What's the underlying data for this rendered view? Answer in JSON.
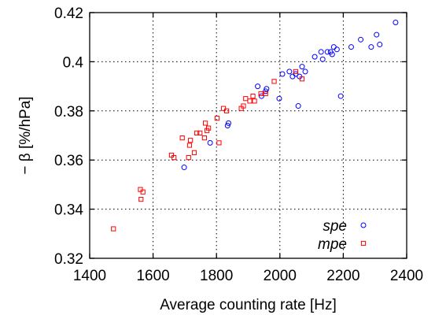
{
  "chart_data": {
    "type": "scatter",
    "xlabel": "Average counting rate [Hz]",
    "ylabel": "− β [%/hPa]",
    "xlim": [
      1400,
      2400
    ],
    "ylim": [
      0.32,
      0.42
    ],
    "xticks": [
      "1400",
      "1600",
      "1800",
      "2000",
      "2200",
      "2400"
    ],
    "yticks": [
      "0.32",
      "0.34",
      "0.36",
      "0.38",
      "0.4",
      "0.42"
    ],
    "grid": true,
    "legend_position": "bottom-right",
    "series": [
      {
        "name": "spe",
        "marker": "circle",
        "color": "#0000ff",
        "points": [
          [
            1698,
            0.357
          ],
          [
            1780,
            0.367
          ],
          [
            1835,
            0.374
          ],
          [
            1838,
            0.375
          ],
          [
            1930,
            0.39
          ],
          [
            1942,
            0.386
          ],
          [
            1955,
            0.388
          ],
          [
            1958,
            0.389
          ],
          [
            1998,
            0.385
          ],
          [
            2008,
            0.395
          ],
          [
            2030,
            0.396
          ],
          [
            2040,
            0.394
          ],
          [
            2050,
            0.395
          ],
          [
            2058,
            0.382
          ],
          [
            2062,
            0.394
          ],
          [
            2070,
            0.398
          ],
          [
            2080,
            0.396
          ],
          [
            2110,
            0.402
          ],
          [
            2130,
            0.404
          ],
          [
            2135,
            0.401
          ],
          [
            2150,
            0.404
          ],
          [
            2160,
            0.404
          ],
          [
            2165,
            0.403
          ],
          [
            2170,
            0.406
          ],
          [
            2180,
            0.405
          ],
          [
            2192,
            0.386
          ],
          [
            2225,
            0.406
          ],
          [
            2255,
            0.409
          ],
          [
            2288,
            0.406
          ],
          [
            2305,
            0.411
          ],
          [
            2315,
            0.407
          ],
          [
            2365,
            0.416
          ]
        ]
      },
      {
        "name": "mpe",
        "marker": "square",
        "color": "#ff0000",
        "points": [
          [
            1475,
            0.332
          ],
          [
            1560,
            0.348
          ],
          [
            1562,
            0.344
          ],
          [
            1568,
            0.347
          ],
          [
            1658,
            0.362
          ],
          [
            1666,
            0.361
          ],
          [
            1692,
            0.369
          ],
          [
            1712,
            0.361
          ],
          [
            1715,
            0.366
          ],
          [
            1718,
            0.368
          ],
          [
            1730,
            0.363
          ],
          [
            1738,
            0.371
          ],
          [
            1748,
            0.371
          ],
          [
            1762,
            0.369
          ],
          [
            1765,
            0.375
          ],
          [
            1770,
            0.372
          ],
          [
            1775,
            0.373
          ],
          [
            1802,
            0.377
          ],
          [
            1808,
            0.367
          ],
          [
            1822,
            0.381
          ],
          [
            1832,
            0.38
          ],
          [
            1878,
            0.381
          ],
          [
            1885,
            0.382
          ],
          [
            1892,
            0.385
          ],
          [
            1905,
            0.384
          ],
          [
            1915,
            0.386
          ],
          [
            1920,
            0.384
          ],
          [
            1940,
            0.387
          ],
          [
            1955,
            0.387
          ],
          [
            1982,
            0.392
          ],
          [
            2050,
            0.396
          ],
          [
            2070,
            0.393
          ]
        ]
      }
    ]
  }
}
